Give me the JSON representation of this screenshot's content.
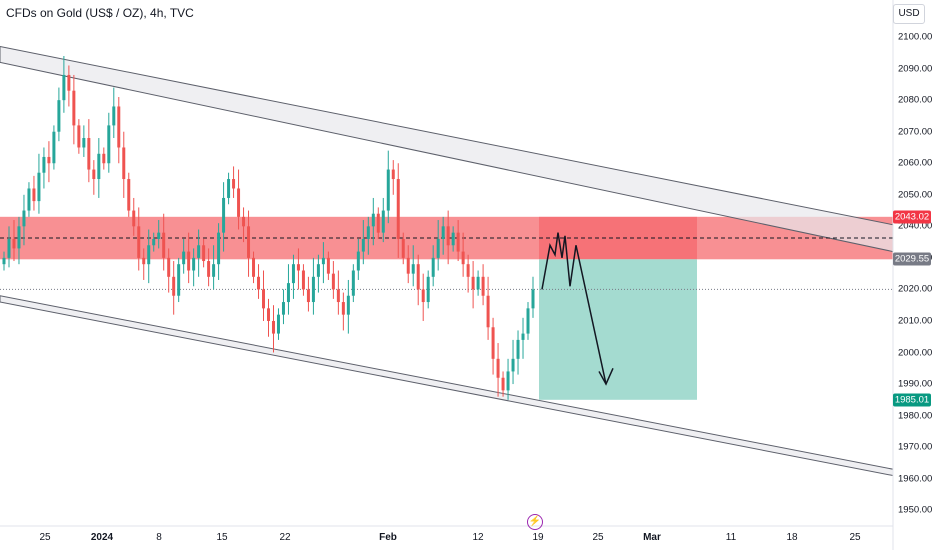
{
  "header": {
    "title": "CFDs on Gold (US$ / OZ), 4h, TVC",
    "currency_button": "USD"
  },
  "colors": {
    "up": "#26a69a",
    "down": "#ef5350",
    "supply_zone": "#f77c80",
    "target_zone": "#9fd9cd",
    "channel": "#b2b5be",
    "price_tag_red": "#f23645",
    "price_tag_gray": "#787b86",
    "price_tag_green": "#089981"
  },
  "icons": {
    "event": "flash-icon"
  },
  "chart_data": {
    "type": "candlestick",
    "title": "CFDs on Gold (US$ / OZ), 4h, TVC",
    "ylim": [
      1945,
      2107
    ],
    "yticks": [
      "2100.00",
      "2090.00",
      "2080.00",
      "2070.00",
      "2060.00",
      "2050.00",
      "2040.00",
      "2030.00",
      "2020.00",
      "2010.00",
      "2000.00",
      "1990.00",
      "1980.00",
      "1970.00",
      "1960.00",
      "1950.00"
    ],
    "xticks": [
      "25",
      "2024",
      "8",
      "15",
      "22",
      "Feb",
      "12",
      "19",
      "25",
      "Mar",
      "11",
      "18",
      "25"
    ],
    "price_tags": [
      {
        "label": "2043.02",
        "value": 2043.02,
        "kind": "red"
      },
      {
        "label": "2029.55",
        "value": 2029.55,
        "kind": "gray"
      },
      {
        "label": "1985.01",
        "value": 1985.01,
        "kind": "green"
      }
    ],
    "dashed_level": 2036.3,
    "dotted_level": 2020,
    "supply_zone": {
      "from": 2029.55,
      "to": 2043.02
    },
    "target_zone": {
      "from": 1985.01,
      "to": 2029.55,
      "start": "19",
      "end": "Mar +1w"
    },
    "channel_upper": [
      {
        "date": "Dec 18",
        "top": 2097,
        "bottom": 2093
      },
      {
        "date": "Mar 28",
        "top": 2040,
        "bottom": 2036
      }
    ],
    "channel_lower": [
      {
        "date": "Dec 18",
        "top": 2018,
        "bottom": 2015
      },
      {
        "date": "Mar 28",
        "top": 1963,
        "bottom": 1961
      }
    ],
    "candles_close": [
      2030,
      2036,
      2033,
      2040,
      2045,
      2052,
      2048,
      2057,
      2062,
      2060,
      2070,
      2080,
      2088,
      2083,
      2072,
      2065,
      2068,
      2058,
      2055,
      2063,
      2060,
      2072,
      2078,
      2065,
      2055,
      2045,
      2040,
      2030,
      2028,
      2034,
      2036,
      2038,
      2030,
      2024,
      2018,
      2028,
      2032,
      2026,
      2030,
      2034,
      2029,
      2024,
      2028,
      2038,
      2049,
      2055,
      2052,
      2043,
      2040,
      2030,
      2024,
      2020,
      2014,
      2010,
      2006,
      2012,
      2016,
      2022,
      2028,
      2026,
      2020,
      2016,
      2024,
      2028,
      2030,
      2025,
      2020,
      2016,
      2012,
      2018,
      2026,
      2032,
      2036,
      2040,
      2044,
      2038,
      2045,
      2058,
      2055,
      2036,
      2030,
      2025,
      2028,
      2020,
      2016,
      2024,
      2030,
      2036,
      2040,
      2034,
      2038,
      2032,
      2028,
      2024,
      2020,
      2024,
      2018,
      2008,
      1998,
      1992,
      1988,
      1994,
      1998,
      2004,
      2006,
      2014,
      2020
    ]
  }
}
